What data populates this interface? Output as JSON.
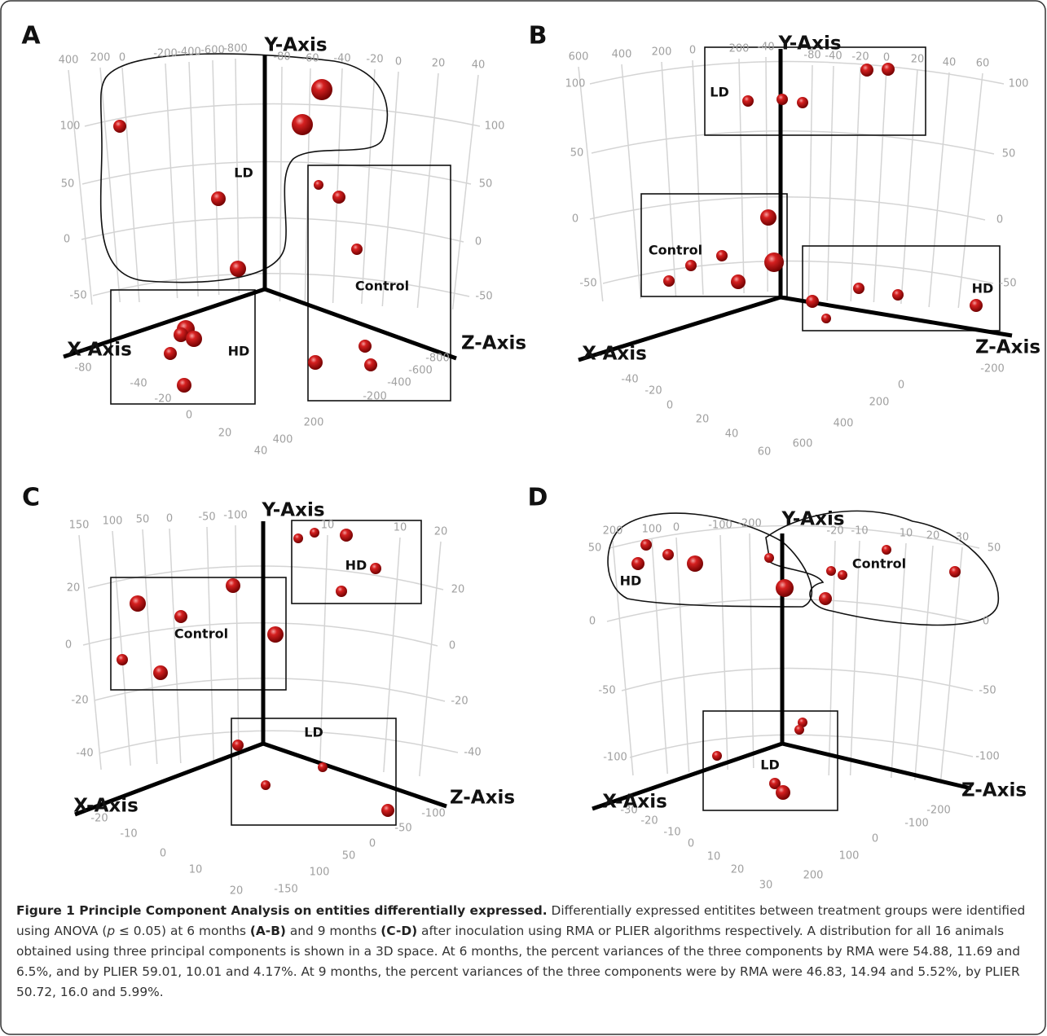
{
  "panels": [
    {
      "letter": "A",
      "y_axis_label": "Y-Axis",
      "x_axis_label": "X-Axis",
      "z_axis_label": "Z-Axis",
      "groups": [
        "LD",
        "Control",
        "HD"
      ],
      "tick_labels": [
        "400",
        "200",
        "0",
        "-200",
        "-400",
        "-600",
        "-800",
        "-80",
        "-60",
        "-40",
        "-20",
        "0",
        "20",
        "40",
        "100",
        "50",
        "0",
        "-50",
        "100",
        "50",
        "0",
        "-50",
        "-80",
        "-40",
        "-20",
        "0",
        "20",
        "40",
        "200",
        "400",
        "-800",
        "-600",
        "-400",
        "-200"
      ]
    },
    {
      "letter": "B",
      "y_axis_label": "Y-Axis",
      "x_axis_label": "X-Axis",
      "z_axis_label": "Z-Axis",
      "groups": [
        "LD",
        "Control",
        "HD"
      ],
      "tick_labels": [
        "600",
        "400",
        "200",
        "0",
        "200",
        "-40",
        "-80",
        "-40",
        "-20",
        "0",
        "20",
        "40",
        "60",
        "100",
        "50",
        "0",
        "-50",
        "100",
        "50",
        "0",
        "-50",
        "-40",
        "-20",
        "0",
        "20",
        "40",
        "60",
        "600",
        "400",
        "200",
        "0",
        "-200"
      ]
    },
    {
      "letter": "C",
      "y_axis_label": "Y-Axis",
      "x_axis_label": "X-Axis",
      "z_axis_label": "Z-Axis",
      "groups": [
        "Control",
        "HD",
        "LD"
      ],
      "tick_labels": [
        "150",
        "100",
        "50",
        "0",
        "-50",
        "-100",
        "10",
        "10",
        "20",
        "20",
        "0",
        "-20",
        "-40",
        "20",
        "0",
        "-20",
        "-40",
        "-20",
        "-10",
        "0",
        "10",
        "20",
        "-150",
        "100",
        "50",
        "0",
        "-50",
        "-100"
      ]
    },
    {
      "letter": "D",
      "y_axis_label": "Y-Axis",
      "x_axis_label": "X-Axis",
      "z_axis_label": "Z-Axis",
      "groups": [
        "HD",
        "Control",
        "LD"
      ],
      "tick_labels": [
        "200",
        "100",
        "0",
        "-100",
        "-200",
        "-20",
        "-10",
        "10",
        "20",
        "30",
        "50",
        "0",
        "-50",
        "-100",
        "50",
        "0",
        "-50",
        "-100",
        "-30",
        "-20",
        "-10",
        "0",
        "10",
        "20",
        "30",
        "200",
        "100",
        "0",
        "-100",
        "-200"
      ]
    }
  ],
  "caption": {
    "title": "Figure 1 Principle Component Analysis on entities differentially expressed.",
    "parts": [
      " Differentially expressed entitites between treatment groups were identified using ANOVA (",
      "p",
      " ≤ 0.05) at 6 months ",
      "(A-B)",
      " and 9 months ",
      "(C-D)",
      " after inoculation using RMA or PLIER algorithms respectively. A distribution for all 16 animals obtained using three principal components is shown in a 3D space. At 6 months, the percent variances of the three components by RMA were 54.88, 11.69 and 6.5%, and by PLIER 59.01, 10.01 and 4.17%. At 9 months, the percent variances of the three components were by RMA were 46.83, 14.94 and 5.52%, by PLIER 50.72, 16.0 and 5.99%."
    ]
  }
}
